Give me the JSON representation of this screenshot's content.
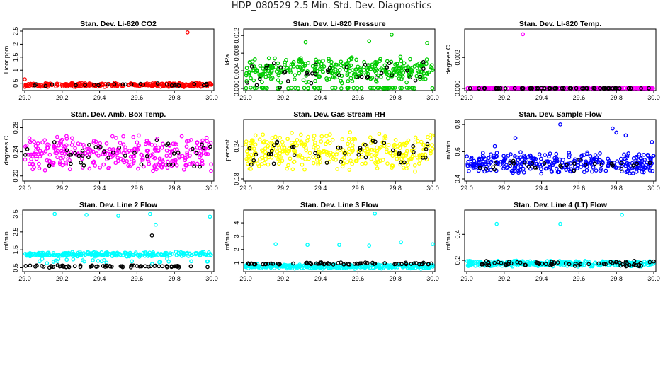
{
  "page": {
    "title": "HDP_080529  2.5 Min. Std. Dev. Diagnostics"
  },
  "colors": {
    "black": "#000000",
    "red": "#ff0000",
    "green": "#00cc00",
    "magenta": "#ff00ff",
    "yellow": "#ffff00",
    "blue": "#0000ff",
    "cyan": "#00ffff"
  },
  "chart_data": [
    {
      "id": "co2",
      "type": "scatter",
      "title": "Stan. Dev. Li-820 CO2",
      "ylabel": "Licor ppm",
      "xlim": [
        29.0,
        30.0
      ],
      "xticks": [
        "29.0",
        "29.2",
        "29.4",
        "29.6",
        "29.8",
        "30.0"
      ],
      "ylim": [
        0.3,
        2.5
      ],
      "yticks": [
        "0.5",
        "1",
        "1.5",
        "2",
        "2.5"
      ],
      "ytick_values": [
        0.5,
        1,
        1.5,
        2,
        2.5
      ],
      "color": "red",
      "series": [
        {
          "name": "dense",
          "color": "red",
          "points": "band",
          "band": [
            0.35,
            0.52
          ],
          "n": 300
        },
        {
          "name": "black",
          "color": "black",
          "points": "band",
          "band": [
            0.38,
            0.5
          ],
          "n": 25
        },
        {
          "name": "outliers",
          "color": "red",
          "x": [
            29.0,
            29.87
          ],
          "y": [
            0.65,
            2.45
          ]
        }
      ]
    },
    {
      "id": "pressure",
      "type": "scatter",
      "title": "Stan. Dev. Li-820 Pressure",
      "ylabel": "kPa",
      "xlim": [
        29.0,
        30.0
      ],
      "xticks": [
        "29.0",
        "29.2",
        "29.4",
        "29.6",
        "29.8",
        "30.0"
      ],
      "ylim": [
        0.0,
        0.013
      ],
      "yticks": [
        "0.000",
        "0.004",
        "0.008",
        "0.012"
      ],
      "ytick_values": [
        0,
        0.004,
        0.008,
        0.012
      ],
      "color": "green",
      "series": [
        {
          "name": "dense",
          "color": "green",
          "points": "band",
          "band": [
            0.001,
            0.0075
          ],
          "n": 320
        },
        {
          "name": "zero",
          "color": "green",
          "points": "band",
          "band": [
            0.0,
            0.0002
          ],
          "n": 60
        },
        {
          "name": "black",
          "color": "black",
          "points": "band",
          "band": [
            0.0,
            0.0065
          ],
          "n": 40
        },
        {
          "name": "outliers",
          "color": "green",
          "x": [
            29.32,
            29.66,
            29.78,
            29.97
          ],
          "y": [
            0.0105,
            0.0107,
            0.0122,
            0.0103
          ]
        }
      ]
    },
    {
      "id": "temp",
      "type": "scatter",
      "title": "Stan. Dev. Li-820 Temp.",
      "ylabel": "degrees C",
      "xlim": [
        29.0,
        30.0
      ],
      "xticks": [
        "29.0",
        "29.2",
        "29.4",
        "29.6",
        "29.8",
        "30.0"
      ],
      "ylim": [
        0.0,
        0.0037
      ],
      "yticks": [
        "0.000",
        "0.002"
      ],
      "ytick_values": [
        0,
        0.002
      ],
      "color": "magenta",
      "series": [
        {
          "name": "dense",
          "color": "magenta",
          "points": "band",
          "band": [
            0.0,
            2e-05
          ],
          "n": 200
        },
        {
          "name": "black",
          "color": "black",
          "points": "band",
          "band": [
            0.0,
            2e-05
          ],
          "n": 60
        },
        {
          "name": "outliers",
          "color": "magenta",
          "x": [
            29.3
          ],
          "y": [
            0.0035
          ]
        }
      ]
    },
    {
      "id": "boxtemp",
      "type": "scatter",
      "title": "Stan. Dev. Amb. Box Temp.",
      "ylabel": "degrees C",
      "xlim": [
        29.0,
        30.0
      ],
      "xticks": [
        "29.0",
        "29.2",
        "29.4",
        "29.6",
        "29.8",
        "30.0"
      ],
      "ylim": [
        0.195,
        0.29
      ],
      "yticks": [
        "0.20",
        "0.24",
        "0.28"
      ],
      "ytick_values": [
        0.2,
        0.24,
        0.28
      ],
      "color": "magenta",
      "series": [
        {
          "name": "dense",
          "color": "magenta",
          "points": "band",
          "band": [
            0.205,
            0.27
          ],
          "n": 320
        },
        {
          "name": "black",
          "color": "black",
          "points": "band",
          "band": [
            0.21,
            0.265
          ],
          "n": 40
        }
      ]
    },
    {
      "id": "rh",
      "type": "scatter",
      "title": "Stan. Dev. Gas Stream RH",
      "ylabel": "percent",
      "xlim": [
        29.0,
        30.0
      ],
      "xticks": [
        "29.0",
        "29.2",
        "29.4",
        "29.6",
        "29.8",
        "30.0"
      ],
      "ylim": [
        0.18,
        0.285
      ],
      "yticks": [
        "0.18",
        "0.24"
      ],
      "ytick_values": [
        0.18,
        0.24
      ],
      "color": "yellow",
      "series": [
        {
          "name": "dense",
          "color": "yellow",
          "points": "band",
          "band": [
            0.19,
            0.27
          ],
          "n": 340
        },
        {
          "name": "black",
          "color": "black",
          "points": "band",
          "band": [
            0.2,
            0.26
          ],
          "n": 40
        }
      ]
    },
    {
      "id": "sampleflow",
      "type": "scatter",
      "title": "Stan. Dev. Sample Flow",
      "ylabel": "ml/min",
      "xlim": [
        29.0,
        30.0
      ],
      "xticks": [
        "29.0",
        "29.2",
        "29.4",
        "29.6",
        "29.8",
        "30.0"
      ],
      "ylim": [
        0.4,
        0.82
      ],
      "yticks": [
        "0.4",
        "0.6",
        "0.8"
      ],
      "ytick_values": [
        0.4,
        0.6,
        0.8
      ],
      "color": "blue",
      "series": [
        {
          "name": "dense",
          "color": "blue",
          "points": "band",
          "band": [
            0.43,
            0.6
          ],
          "n": 340
        },
        {
          "name": "black",
          "color": "black",
          "points": "band",
          "band": [
            0.46,
            0.55
          ],
          "n": 30
        },
        {
          "name": "outliers",
          "color": "blue",
          "x": [
            29.15,
            29.26,
            29.5,
            29.78,
            29.8,
            29.85,
            29.99
          ],
          "y": [
            0.64,
            0.7,
            0.8,
            0.77,
            0.74,
            0.72,
            0.67
          ]
        }
      ]
    },
    {
      "id": "line2",
      "type": "scatter",
      "title": "Stan. Dev. Line 2 Flow",
      "ylabel": "ml/min",
      "xlim": [
        29.0,
        30.0
      ],
      "xticks": [
        "29.0",
        "29.2",
        "29.4",
        "29.6",
        "29.8",
        "30.0"
      ],
      "ylim": [
        0.4,
        3.6
      ],
      "yticks": [
        "0.5",
        "1.5",
        "2.5",
        "3.5"
      ],
      "ytick_values": [
        0.5,
        1.5,
        2.5,
        3.5
      ],
      "color": "cyan",
      "series": [
        {
          "name": "dense",
          "color": "cyan",
          "points": "band",
          "band": [
            1.1,
            1.4
          ],
          "n": 260
        },
        {
          "name": "dip",
          "color": "cyan",
          "points": "band",
          "band": [
            0.7,
            1.1
          ],
          "n": 25
        },
        {
          "name": "black",
          "color": "black",
          "points": "band",
          "band": [
            0.5,
            0.65
          ],
          "n": 70
        },
        {
          "name": "outliers",
          "color": "cyan",
          "x": [
            29.16,
            29.33,
            29.5,
            29.67,
            29.7,
            29.99
          ],
          "y": [
            3.5,
            3.45,
            3.4,
            3.5,
            2.9,
            3.35
          ]
        },
        {
          "name": "black-outliers",
          "color": "black",
          "x": [
            29.68
          ],
          "y": [
            2.3
          ]
        }
      ]
    },
    {
      "id": "line3",
      "type": "scatter",
      "title": "Stan. Dev. Line 3 Flow",
      "ylabel": "ml/min",
      "xlim": [
        29.0,
        30.0
      ],
      "xticks": [
        "29.0",
        "29.2",
        "29.4",
        "29.6",
        "29.8",
        "30.0"
      ],
      "ylim": [
        0.5,
        4.8
      ],
      "yticks": [
        "1",
        "2",
        "3",
        "4"
      ],
      "ytick_values": [
        1,
        2,
        3,
        4
      ],
      "color": "cyan",
      "series": [
        {
          "name": "dense",
          "color": "cyan",
          "points": "band",
          "band": [
            0.55,
            0.9
          ],
          "n": 320
        },
        {
          "name": "black",
          "color": "black",
          "points": "band",
          "band": [
            0.85,
            1.05
          ],
          "n": 70
        },
        {
          "name": "outliers",
          "color": "cyan",
          "x": [
            29.16,
            29.33,
            29.5,
            29.66,
            29.69,
            29.83,
            30.0
          ],
          "y": [
            2.4,
            2.35,
            2.35,
            2.3,
            4.7,
            2.55,
            2.4
          ]
        }
      ]
    },
    {
      "id": "line4",
      "type": "scatter",
      "title": "Stan. Dev. Line 4 (LT) Flow",
      "ylabel": "ml/min",
      "xlim": [
        29.0,
        30.0
      ],
      "xticks": [
        "29.0",
        "29.2",
        "29.4",
        "29.6",
        "29.8",
        "30.0"
      ],
      "ylim": [
        0.13,
        0.57
      ],
      "yticks": [
        "0.2",
        "0.4"
      ],
      "ytick_values": [
        0.2,
        0.4
      ],
      "color": "cyan",
      "series": [
        {
          "name": "dense",
          "color": "cyan",
          "points": "band",
          "band": [
            0.15,
            0.2
          ],
          "n": 300
        },
        {
          "name": "black",
          "color": "black",
          "points": "band",
          "band": [
            0.15,
            0.2
          ],
          "n": 70
        },
        {
          "name": "outliers",
          "color": "cyan",
          "x": [
            29.16,
            29.5,
            29.83
          ],
          "y": [
            0.48,
            0.48,
            0.55
          ]
        }
      ]
    }
  ]
}
